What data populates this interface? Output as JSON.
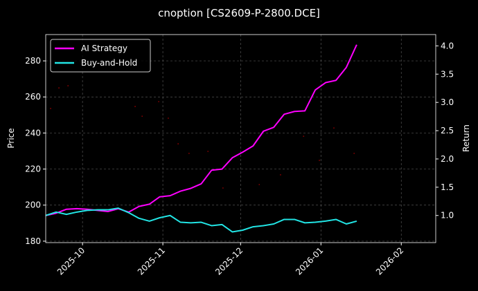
{
  "chart_data": {
    "type": "line",
    "title": "cnoption [CS2609-P-2800.DCE]",
    "y_label": "Price",
    "y2_label": "Return",
    "x": [
      0,
      4,
      8,
      12,
      16,
      20,
      24,
      28,
      32,
      36,
      40,
      44,
      48,
      52,
      56,
      60,
      64,
      68,
      72,
      76,
      80,
      84,
      88,
      92,
      96,
      100,
      104,
      108,
      112,
      116,
      120
    ],
    "xlim": [
      0,
      150.5
    ],
    "xticks": [
      {
        "value": 14.2,
        "label": "2025-10"
      },
      {
        "value": 45.2,
        "label": "2025-11"
      },
      {
        "value": 75.2,
        "label": "2025-12"
      },
      {
        "value": 106.2,
        "label": "2026-01"
      },
      {
        "value": 137.2,
        "label": "2026-02"
      }
    ],
    "ylim": [
      179.2,
      294.6
    ],
    "yticks": [
      180,
      200,
      220,
      240,
      260,
      280
    ],
    "y2lim": [
      0.52,
      4.2
    ],
    "y2ticks": [
      {
        "value": 1,
        "label": "1.0"
      },
      {
        "value": 1.5,
        "label": "1.5"
      },
      {
        "value": 2,
        "label": "2.0"
      },
      {
        "value": 2.5,
        "label": "2.5"
      },
      {
        "value": 3,
        "label": "3.0"
      },
      {
        "value": 3.5,
        "label": "3.5"
      },
      {
        "value": 4,
        "label": "4.0"
      }
    ],
    "grid": true,
    "legend": "upper left",
    "series": [
      {
        "name": "AI Strategy",
        "color": "#ff00ff",
        "axis": "y2",
        "values": [
          1.0,
          1.04,
          1.11,
          1.12,
          1.11,
          1.09,
          1.07,
          1.12,
          1.06,
          1.16,
          1.2,
          1.33,
          1.35,
          1.43,
          1.48,
          1.56,
          1.8,
          1.82,
          2.02,
          2.12,
          2.23,
          2.49,
          2.56,
          2.79,
          2.84,
          2.85,
          3.22,
          3.35,
          3.39,
          3.62,
          4.02
        ]
      },
      {
        "name": "Buy-and-Hold",
        "color": "#22e5e5",
        "axis": "y2",
        "values": [
          1.0,
          1.06,
          1.02,
          1.06,
          1.09,
          1.1,
          1.1,
          1.13,
          1.05,
          0.95,
          0.9,
          0.96,
          1.0,
          0.88,
          0.87,
          0.88,
          0.82,
          0.84,
          0.71,
          0.74,
          0.8,
          0.82,
          0.85,
          0.93,
          0.93,
          0.87,
          0.88,
          0.9,
          0.93,
          0.85,
          0.9
        ]
      }
    ],
    "price_points": {
      "color": "#8b0000",
      "x": [
        1.9,
        5.1,
        8.6,
        34.5,
        37.2,
        43.6,
        47.3,
        51.1,
        55.3,
        62.6,
        68.4,
        82.4,
        90.6,
        99.5,
        105.6,
        111.2,
        119
      ],
      "values": [
        253.6,
        265,
        266.2,
        254.7,
        249.3,
        257.4,
        248.2,
        234,
        228.7,
        229.8,
        209.5,
        211.4,
        216.8,
        238.2,
        224.8,
        242.8,
        228.7
      ]
    }
  }
}
